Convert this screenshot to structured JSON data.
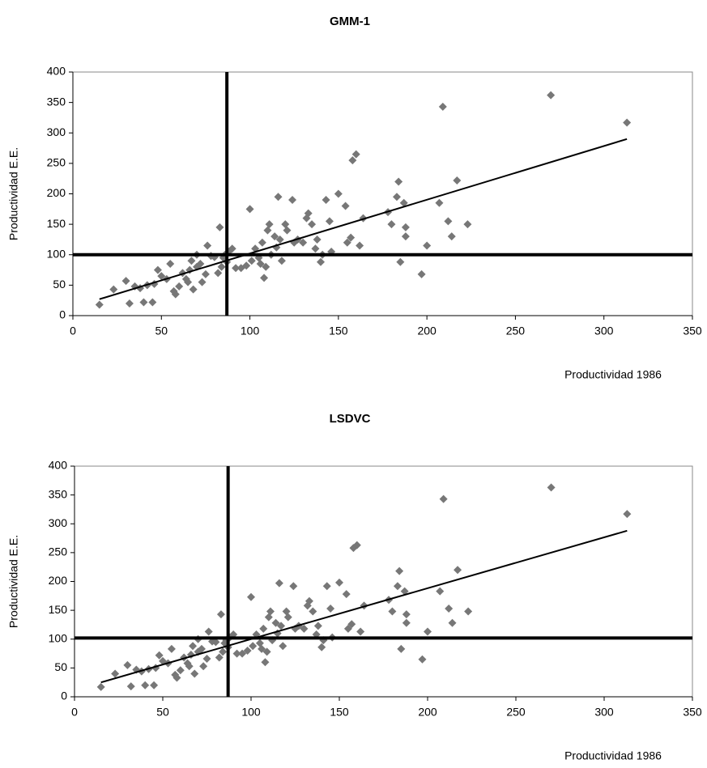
{
  "chart_data": [
    {
      "type": "scatter",
      "title": "GMM-1",
      "x_label": "Productividad 1986",
      "y_label": "Productividad E.E.",
      "color": "#777777",
      "x": [
        15,
        23,
        30,
        32,
        35,
        38,
        40,
        42,
        45,
        46,
        48,
        50,
        53,
        55,
        57,
        58,
        60,
        62,
        64,
        65,
        66,
        67,
        68,
        70,
        70,
        72,
        73,
        75,
        76,
        78,
        80,
        82,
        83,
        84,
        85,
        86,
        87,
        88,
        90,
        92,
        95,
        98,
        100,
        101,
        103,
        105,
        106,
        107,
        108,
        109,
        110,
        111,
        112,
        114,
        115,
        116,
        117,
        118,
        120,
        121,
        124,
        125,
        127,
        130,
        132,
        133,
        135,
        137,
        138,
        140,
        141,
        143,
        145,
        146,
        150,
        154,
        155,
        157,
        158,
        160,
        162,
        164,
        178,
        180,
        183,
        184,
        185,
        187,
        188,
        188,
        197,
        200,
        207,
        209,
        212,
        214,
        217,
        223,
        270,
        313
      ],
      "y": [
        18,
        43,
        57,
        20,
        48,
        45,
        22,
        50,
        22,
        52,
        75,
        65,
        60,
        85,
        40,
        35,
        48,
        70,
        60,
        55,
        75,
        90,
        43,
        100,
        80,
        85,
        55,
        68,
        115,
        98,
        96,
        70,
        145,
        80,
        95,
        100,
        88,
        105,
        110,
        78,
        78,
        82,
        175,
        90,
        110,
        95,
        85,
        120,
        62,
        80,
        140,
        150,
        100,
        130,
        112,
        195,
        125,
        90,
        150,
        140,
        190,
        120,
        125,
        120,
        160,
        168,
        150,
        110,
        125,
        88,
        100,
        190,
        155,
        105,
        200,
        180,
        120,
        128,
        255,
        265,
        115,
        160,
        170,
        150,
        195,
        220,
        88,
        185,
        145,
        130,
        68,
        115,
        185,
        343,
        155,
        130,
        222,
        150,
        362,
        317
      ],
      "trendline": {
        "x": [
          15,
          313
        ],
        "y": [
          27,
          290
        ]
      },
      "vline": 87,
      "hline": 100,
      "xlim": [
        0,
        350
      ],
      "ylim": [
        0,
        400
      ],
      "xticks": [
        0,
        50,
        100,
        150,
        200,
        250,
        300,
        350
      ],
      "yticks": [
        0,
        50,
        100,
        150,
        200,
        250,
        300,
        350,
        400
      ]
    },
    {
      "type": "scatter",
      "title": "LSDVC",
      "x_label": "Productividad 1986",
      "y_label": "Productividad E.E.",
      "color": "#777777",
      "x": [
        15,
        23,
        30,
        32,
        35,
        38,
        40,
        42,
        45,
        46,
        48,
        50,
        53,
        55,
        57,
        58,
        60,
        62,
        64,
        65,
        66,
        67,
        68,
        70,
        70,
        72,
        73,
        75,
        76,
        78,
        80,
        82,
        83,
        84,
        85,
        86,
        87,
        88,
        90,
        92,
        95,
        98,
        100,
        101,
        103,
        105,
        106,
        107,
        108,
        109,
        110,
        111,
        112,
        114,
        115,
        116,
        117,
        118,
        120,
        121,
        124,
        125,
        127,
        130,
        132,
        133,
        135,
        137,
        138,
        140,
        141,
        143,
        145,
        146,
        150,
        154,
        155,
        157,
        158,
        160,
        162,
        164,
        178,
        180,
        183,
        184,
        185,
        187,
        188,
        188,
        197,
        200,
        207,
        209,
        212,
        214,
        217,
        223,
        270,
        313
      ],
      "y": [
        17,
        40,
        55,
        18,
        47,
        44,
        20,
        48,
        20,
        50,
        72,
        62,
        58,
        83,
        38,
        33,
        46,
        68,
        58,
        53,
        73,
        88,
        40,
        100,
        78,
        83,
        53,
        66,
        113,
        96,
        95,
        68,
        143,
        78,
        93,
        98,
        86,
        103,
        108,
        75,
        75,
        80,
        173,
        88,
        108,
        93,
        83,
        118,
        60,
        78,
        138,
        148,
        98,
        128,
        110,
        197,
        123,
        88,
        148,
        138,
        192,
        118,
        123,
        118,
        158,
        166,
        148,
        108,
        123,
        86,
        98,
        192,
        153,
        103,
        198,
        178,
        118,
        126,
        258,
        263,
        113,
        158,
        168,
        148,
        192,
        218,
        83,
        183,
        143,
        128,
        65,
        113,
        183,
        343,
        153,
        128,
        220,
        148,
        363,
        317
      ],
      "trendline": {
        "x": [
          15,
          313
        ],
        "y": [
          25,
          288
        ]
      },
      "vline": 87,
      "hline": 102,
      "xlim": [
        0,
        350
      ],
      "ylim": [
        0,
        400
      ],
      "xticks": [
        0,
        50,
        100,
        150,
        200,
        250,
        300,
        350
      ],
      "yticks": [
        0,
        50,
        100,
        150,
        200,
        250,
        300,
        350,
        400
      ]
    }
  ]
}
